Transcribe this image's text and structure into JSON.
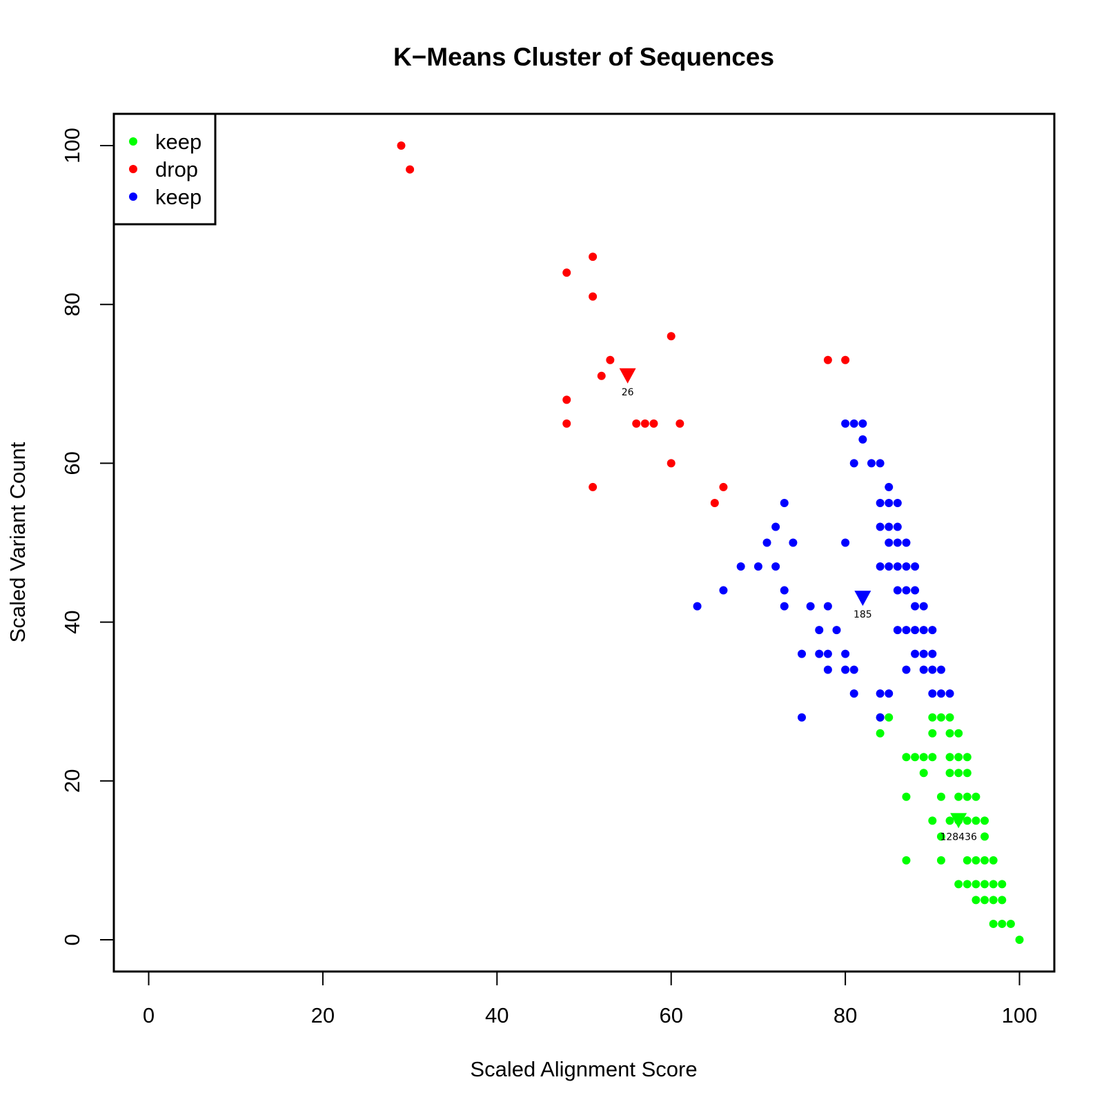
{
  "chart_data": {
    "type": "scatter",
    "title": "K−Means Cluster of Sequences",
    "xlabel": "Scaled Alignment Score",
    "ylabel": "Scaled Variant Count",
    "xlim": [
      -4,
      104
    ],
    "ylim": [
      -4,
      104
    ],
    "xticks": [
      0,
      20,
      40,
      60,
      80,
      100
    ],
    "yticks": [
      0,
      20,
      40,
      60,
      80,
      100
    ],
    "grid": false,
    "legend_position": "top-left",
    "legend": [
      {
        "label": "keep",
        "color": "#00ff00"
      },
      {
        "label": "drop",
        "color": "#ff0000"
      },
      {
        "label": "keep",
        "color": "#0000ff"
      }
    ],
    "series": [
      {
        "name": "keep",
        "color": "#00ff00",
        "points": [
          [
            84,
            28
          ],
          [
            85,
            28
          ],
          [
            84,
            26
          ],
          [
            90,
            28
          ],
          [
            91,
            28
          ],
          [
            92,
            28
          ],
          [
            90,
            26
          ],
          [
            92,
            26
          ],
          [
            93,
            26
          ],
          [
            87,
            23
          ],
          [
            88,
            23
          ],
          [
            89,
            23
          ],
          [
            90,
            23
          ],
          [
            92,
            23
          ],
          [
            93,
            23
          ],
          [
            94,
            23
          ],
          [
            89,
            21
          ],
          [
            92,
            21
          ],
          [
            93,
            21
          ],
          [
            94,
            21
          ],
          [
            87,
            18
          ],
          [
            91,
            18
          ],
          [
            93,
            18
          ],
          [
            94,
            18
          ],
          [
            95,
            18
          ],
          [
            90,
            15
          ],
          [
            92,
            15
          ],
          [
            93,
            15
          ],
          [
            94,
            15
          ],
          [
            95,
            15
          ],
          [
            96,
            15
          ],
          [
            91,
            13
          ],
          [
            96,
            13
          ],
          [
            87,
            10
          ],
          [
            91,
            10
          ],
          [
            94,
            10
          ],
          [
            95,
            10
          ],
          [
            96,
            10
          ],
          [
            97,
            10
          ],
          [
            93,
            7
          ],
          [
            94,
            7
          ],
          [
            95,
            7
          ],
          [
            96,
            7
          ],
          [
            97,
            7
          ],
          [
            98,
            7
          ],
          [
            95,
            5
          ],
          [
            96,
            5
          ],
          [
            97,
            5
          ],
          [
            98,
            5
          ],
          [
            97,
            2
          ],
          [
            98,
            2
          ],
          [
            99,
            2
          ],
          [
            100,
            0
          ]
        ]
      },
      {
        "name": "drop",
        "color": "#ff0000",
        "points": [
          [
            29,
            100
          ],
          [
            30,
            97
          ],
          [
            51,
            86
          ],
          [
            48,
            84
          ],
          [
            51,
            81
          ],
          [
            60,
            76
          ],
          [
            53,
            73
          ],
          [
            78,
            73
          ],
          [
            80,
            73
          ],
          [
            52,
            71
          ],
          [
            48,
            68
          ],
          [
            48,
            65
          ],
          [
            56,
            65
          ],
          [
            57,
            65
          ],
          [
            58,
            65
          ],
          [
            61,
            65
          ],
          [
            60,
            60
          ],
          [
            51,
            57
          ],
          [
            66,
            57
          ],
          [
            65,
            55
          ]
        ]
      },
      {
        "name": "keep",
        "color": "#0000ff",
        "points": [
          [
            80,
            65
          ],
          [
            81,
            65
          ],
          [
            82,
            65
          ],
          [
            82,
            63
          ],
          [
            81,
            60
          ],
          [
            83,
            60
          ],
          [
            84,
            60
          ],
          [
            85,
            57
          ],
          [
            73,
            55
          ],
          [
            84,
            55
          ],
          [
            85,
            55
          ],
          [
            86,
            55
          ],
          [
            72,
            52
          ],
          [
            84,
            52
          ],
          [
            85,
            52
          ],
          [
            86,
            52
          ],
          [
            71,
            50
          ],
          [
            74,
            50
          ],
          [
            80,
            50
          ],
          [
            85,
            50
          ],
          [
            86,
            50
          ],
          [
            87,
            50
          ],
          [
            68,
            47
          ],
          [
            70,
            47
          ],
          [
            72,
            47
          ],
          [
            84,
            47
          ],
          [
            85,
            47
          ],
          [
            86,
            47
          ],
          [
            87,
            47
          ],
          [
            88,
            47
          ],
          [
            66,
            44
          ],
          [
            73,
            44
          ],
          [
            86,
            44
          ],
          [
            87,
            44
          ],
          [
            88,
            44
          ],
          [
            63,
            42
          ],
          [
            73,
            42
          ],
          [
            76,
            42
          ],
          [
            78,
            42
          ],
          [
            88,
            42
          ],
          [
            89,
            42
          ],
          [
            77,
            39
          ],
          [
            79,
            39
          ],
          [
            86,
            39
          ],
          [
            87,
            39
          ],
          [
            88,
            39
          ],
          [
            89,
            39
          ],
          [
            90,
            39
          ],
          [
            75,
            36
          ],
          [
            77,
            36
          ],
          [
            78,
            36
          ],
          [
            80,
            36
          ],
          [
            88,
            36
          ],
          [
            89,
            36
          ],
          [
            90,
            36
          ],
          [
            78,
            34
          ],
          [
            80,
            34
          ],
          [
            81,
            34
          ],
          [
            87,
            34
          ],
          [
            89,
            34
          ],
          [
            90,
            34
          ],
          [
            91,
            34
          ],
          [
            81,
            31
          ],
          [
            84,
            31
          ],
          [
            85,
            31
          ],
          [
            90,
            31
          ],
          [
            91,
            31
          ],
          [
            92,
            31
          ],
          [
            75,
            28
          ],
          [
            84,
            28
          ]
        ]
      }
    ],
    "centroids": [
      {
        "x": 55,
        "y": 71,
        "color": "#ff0000",
        "label": "26"
      },
      {
        "x": 82,
        "y": 43,
        "color": "#0000ff",
        "label": "185"
      },
      {
        "x": 93,
        "y": 15,
        "color": "#00ff00",
        "label": "128436"
      }
    ]
  }
}
